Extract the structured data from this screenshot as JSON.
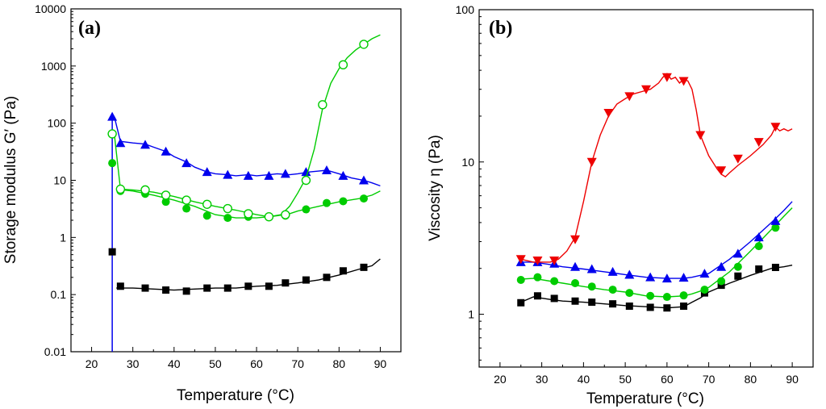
{
  "chart_data": [
    {
      "type": "line",
      "panel_label": "(a)",
      "xlabel": "Temperature (°C)",
      "ylabel": "Storage modulus G′ (Pa)",
      "yscale": "log",
      "xlim": [
        15,
        95
      ],
      "ylim": [
        0.01,
        10000
      ],
      "x_ticks": [
        "20",
        "30",
        "40",
        "50",
        "60",
        "70",
        "80",
        "90"
      ],
      "y_ticks": [
        "0.01",
        "0.1",
        "1",
        "10",
        "100",
        "1000",
        "10000"
      ],
      "vertical_line_x": 25,
      "series": [
        {
          "name": "black-squares",
          "color": "#000000",
          "marker": "square",
          "line_x": [
            26,
            30,
            35,
            40,
            45,
            50,
            55,
            60,
            65,
            70,
            75,
            80,
            85,
            88,
            90
          ],
          "line_y": [
            0.13,
            0.13,
            0.125,
            0.12,
            0.125,
            0.13,
            0.13,
            0.14,
            0.145,
            0.16,
            0.18,
            0.22,
            0.28,
            0.32,
            0.42
          ],
          "points_x": [
            25,
            27,
            33,
            38,
            43,
            48,
            53,
            58,
            63,
            67,
            72,
            77,
            81,
            86
          ],
          "points_y": [
            0.56,
            0.14,
            0.13,
            0.12,
            0.115,
            0.13,
            0.13,
            0.14,
            0.14,
            0.16,
            0.18,
            0.2,
            0.26,
            0.3
          ]
        },
        {
          "name": "blue-triangles",
          "color": "#0000ee",
          "marker": "triangle-up",
          "line_x": [
            25.5,
            27,
            30,
            33,
            35,
            38,
            40,
            43,
            45,
            48,
            50,
            53,
            55,
            58,
            60,
            63,
            65,
            68,
            70,
            73,
            75,
            77,
            80,
            83,
            86,
            88,
            90
          ],
          "line_y": [
            130,
            48,
            45,
            43,
            38,
            32,
            26,
            21,
            17,
            14,
            13,
            12.5,
            12,
            12.5,
            12,
            12.5,
            13,
            12.5,
            13,
            14,
            14.5,
            15,
            13,
            11,
            10,
            9,
            8
          ],
          "points_x": [
            25,
            27,
            33,
            38,
            43,
            48,
            53,
            58,
            63,
            67,
            72,
            77,
            81,
            86
          ],
          "points_y": [
            130,
            45,
            42,
            32,
            20,
            14,
            12.5,
            12,
            12,
            13,
            14,
            15,
            12,
            10
          ]
        },
        {
          "name": "green-filled-circles",
          "color": "#00cc00",
          "marker": "circle-filled",
          "line_x": [
            26,
            30,
            35,
            40,
            45,
            50,
            55,
            60,
            63,
            65,
            68,
            70,
            75,
            80,
            85,
            88,
            90
          ],
          "line_y": [
            7,
            6.5,
            5.5,
            4.5,
            3.5,
            2.5,
            2.2,
            2.2,
            2.3,
            2.4,
            2.6,
            2.9,
            3.5,
            4.2,
            4.8,
            5.5,
            6.5
          ],
          "points_x": [
            25,
            27,
            33,
            38,
            43,
            48,
            53,
            58,
            63,
            67,
            72,
            77,
            81,
            86
          ],
          "points_y": [
            20,
            6.5,
            5.8,
            4.2,
            3.2,
            2.4,
            2.2,
            2.3,
            2.3,
            2.4,
            3.1,
            4.0,
            4.3,
            4.8
          ]
        },
        {
          "name": "green-open-circles",
          "color": "#00cc00",
          "marker": "circle-open",
          "line_x": [
            25.5,
            27,
            30,
            35,
            40,
            45,
            50,
            55,
            60,
            63,
            66,
            68,
            70,
            72,
            74,
            76,
            78,
            80,
            82,
            84,
            86,
            88,
            90
          ],
          "line_y": [
            65,
            7,
            6.8,
            6.2,
            5.2,
            4.2,
            3.5,
            3.0,
            2.5,
            2.3,
            2.5,
            3.5,
            6.0,
            11,
            35,
            180,
            500,
            900,
            1400,
            1900,
            2400,
            3000,
            3500
          ],
          "points_x": [
            25,
            27,
            33,
            38,
            43,
            48,
            53,
            58,
            63,
            67,
            72,
            76,
            81,
            86
          ],
          "points_y": [
            65,
            7,
            6.8,
            5.5,
            4.5,
            3.8,
            3.2,
            2.6,
            2.3,
            2.5,
            10,
            210,
            1050,
            2400
          ]
        }
      ]
    },
    {
      "type": "line",
      "panel_label": "(b)",
      "xlabel": "Temperature (°C)",
      "ylabel": "Viscosity η (Pa)",
      "yscale": "log",
      "xlim": [
        15,
        95
      ],
      "ylim": [
        0.45,
        100
      ],
      "x_ticks": [
        "20",
        "30",
        "40",
        "50",
        "60",
        "70",
        "80",
        "90"
      ],
      "y_ticks": [
        "1",
        "10",
        "100"
      ],
      "series": [
        {
          "name": "black-squares",
          "color": "#000000",
          "marker": "square",
          "line_x": [
            25,
            28,
            32,
            35,
            40,
            45,
            50,
            55,
            60,
            64,
            66,
            68,
            70,
            75,
            80,
            85,
            88,
            90
          ],
          "line_y": [
            1.2,
            1.3,
            1.25,
            1.22,
            1.2,
            1.17,
            1.14,
            1.12,
            1.1,
            1.12,
            1.2,
            1.28,
            1.4,
            1.6,
            1.8,
            2.0,
            2.05,
            2.1
          ],
          "points_x": [
            25,
            29,
            33,
            38,
            42,
            47,
            51,
            56,
            60,
            64,
            69,
            73,
            77,
            82,
            86
          ],
          "points_y": [
            1.19,
            1.32,
            1.27,
            1.22,
            1.2,
            1.17,
            1.13,
            1.11,
            1.1,
            1.13,
            1.38,
            1.55,
            1.78,
            1.98,
            2.03
          ]
        },
        {
          "name": "green-circles",
          "color": "#00cc00",
          "marker": "circle-filled",
          "line_x": [
            25,
            28,
            32,
            35,
            40,
            45,
            50,
            55,
            60,
            64,
            66,
            68,
            70,
            75,
            80,
            85,
            88,
            90
          ],
          "line_y": [
            1.7,
            1.72,
            1.65,
            1.6,
            1.52,
            1.45,
            1.4,
            1.32,
            1.3,
            1.32,
            1.36,
            1.42,
            1.5,
            1.9,
            2.6,
            3.6,
            4.4,
            5.0
          ],
          "points_x": [
            25,
            29,
            33,
            38,
            42,
            47,
            51,
            56,
            60,
            64,
            69,
            73,
            77,
            82,
            86
          ],
          "points_y": [
            1.68,
            1.75,
            1.65,
            1.6,
            1.52,
            1.45,
            1.38,
            1.32,
            1.3,
            1.33,
            1.45,
            1.65,
            2.05,
            2.8,
            3.7
          ]
        },
        {
          "name": "blue-triangles",
          "color": "#0000ee",
          "marker": "triangle-up",
          "line_x": [
            25,
            28,
            32,
            35,
            40,
            45,
            50,
            55,
            60,
            64,
            66,
            68,
            70,
            75,
            80,
            85,
            88,
            90
          ],
          "line_y": [
            2.2,
            2.2,
            2.12,
            2.05,
            1.98,
            1.9,
            1.82,
            1.75,
            1.72,
            1.72,
            1.75,
            1.8,
            1.85,
            2.3,
            3.0,
            4.0,
            4.8,
            5.5
          ],
          "points_x": [
            25,
            29,
            33,
            38,
            42,
            47,
            51,
            56,
            60,
            64,
            69,
            73,
            77,
            82,
            86
          ],
          "points_y": [
            2.2,
            2.2,
            2.15,
            2.05,
            1.98,
            1.9,
            1.82,
            1.75,
            1.72,
            1.74,
            1.85,
            2.05,
            2.5,
            3.2,
            4.1
          ]
        },
        {
          "name": "red-triangles-down",
          "color": "#ee0000",
          "marker": "triangle-down",
          "line_x": [
            25,
            28,
            32,
            34,
            36,
            38,
            40,
            42,
            44,
            46,
            48,
            50,
            52,
            54,
            56,
            58,
            59,
            60,
            61,
            62,
            63,
            64,
            65,
            66,
            67,
            68,
            70,
            72,
            73,
            74,
            75,
            77,
            80,
            83,
            85,
            86,
            87,
            88,
            89,
            90
          ],
          "line_y": [
            2.3,
            2.2,
            2.2,
            2.3,
            2.6,
            3.2,
            5.5,
            10,
            15,
            20,
            24,
            26,
            28,
            29,
            30,
            33,
            36,
            38,
            35,
            36,
            33,
            35,
            34,
            30,
            22,
            15,
            11,
            9,
            8.3,
            8.0,
            8.5,
            9.5,
            11,
            13,
            15,
            17,
            16,
            16.5,
            16,
            16.5
          ],
          "points_x": [
            25,
            29,
            33,
            38,
            42,
            46,
            51,
            55,
            60,
            64,
            68,
            73,
            77,
            82,
            86
          ],
          "points_y": [
            2.3,
            2.25,
            2.25,
            3.1,
            10,
            21,
            27,
            30,
            36,
            34,
            15,
            8.8,
            10.5,
            13.5,
            17
          ]
        }
      ]
    }
  ]
}
